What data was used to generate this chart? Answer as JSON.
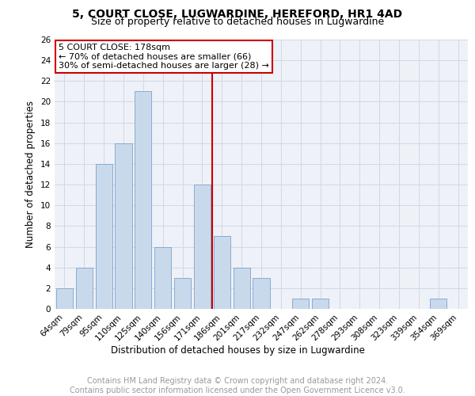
{
  "title": "5, COURT CLOSE, LUGWARDINE, HEREFORD, HR1 4AD",
  "subtitle": "Size of property relative to detached houses in Lugwardine",
  "xlabel": "Distribution of detached houses by size in Lugwardine",
  "ylabel": "Number of detached properties",
  "bar_labels": [
    "64sqm",
    "79sqm",
    "95sqm",
    "110sqm",
    "125sqm",
    "140sqm",
    "156sqm",
    "171sqm",
    "186sqm",
    "201sqm",
    "217sqm",
    "232sqm",
    "247sqm",
    "262sqm",
    "278sqm",
    "293sqm",
    "308sqm",
    "323sqm",
    "339sqm",
    "354sqm",
    "369sqm"
  ],
  "bar_values": [
    2,
    4,
    14,
    16,
    21,
    6,
    3,
    12,
    7,
    4,
    3,
    0,
    1,
    1,
    0,
    0,
    0,
    0,
    0,
    1,
    0
  ],
  "bar_color": "#c9d9ec",
  "bar_edge_color": "#7ba3cc",
  "property_line_x": 7.5,
  "annotation_line1": "5 COURT CLOSE: 178sqm",
  "annotation_line2": "← 70% of detached houses are smaller (66)",
  "annotation_line3": "30% of semi-detached houses are larger (28) →",
  "annotation_box_color": "#ffffff",
  "annotation_box_edge_color": "#cc0000",
  "vline_color": "#cc0000",
  "ylim": [
    0,
    26
  ],
  "yticks": [
    0,
    2,
    4,
    6,
    8,
    10,
    12,
    14,
    16,
    18,
    20,
    22,
    24,
    26
  ],
  "grid_color": "#d0d8e8",
  "footer_line1": "Contains HM Land Registry data © Crown copyright and database right 2024.",
  "footer_line2": "Contains public sector information licensed under the Open Government Licence v3.0.",
  "title_fontsize": 10,
  "subtitle_fontsize": 9,
  "axis_label_fontsize": 8.5,
  "tick_fontsize": 7.5,
  "annotation_fontsize": 8,
  "footer_fontsize": 7
}
